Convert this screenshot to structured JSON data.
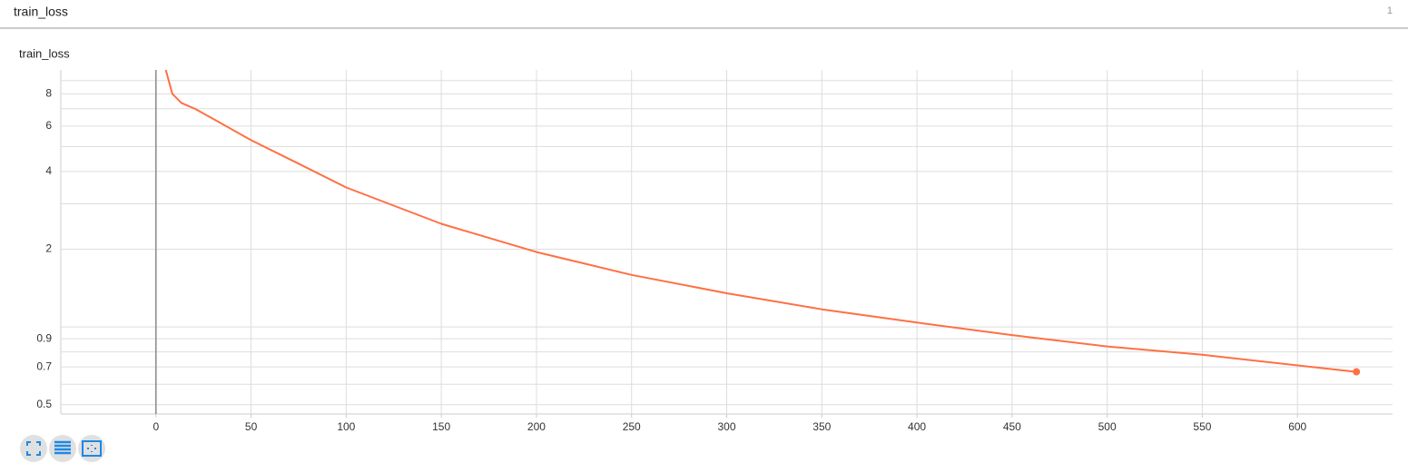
{
  "header": {
    "title": "train_loss",
    "count": "1"
  },
  "chart_data": {
    "type": "line",
    "title": "train_loss",
    "x": [
      5,
      8.6,
      13.4,
      20.5,
      30,
      50,
      75,
      100,
      150,
      200,
      250,
      300,
      350,
      400,
      450,
      500,
      550,
      631
    ],
    "series": [
      {
        "name": "train_loss",
        "color": "#ff7043",
        "values": [
          10,
          8,
          7.37,
          7.0,
          6.4,
          5.29,
          4.29,
          3.47,
          2.51,
          1.95,
          1.59,
          1.35,
          1.17,
          1.04,
          0.93,
          0.84,
          0.78,
          0.67
        ]
      }
    ],
    "xlim": [
      -50,
      650
    ],
    "xticks": [
      0,
      50,
      100,
      150,
      200,
      250,
      300,
      350,
      400,
      450,
      500,
      550,
      600
    ],
    "ylim": [
      0.46,
      9.9
    ],
    "yticks": [
      0.5,
      0.7,
      0.9,
      2,
      4,
      6,
      8
    ],
    "yminor": [
      0.6,
      0.8,
      1,
      3,
      5,
      7,
      9
    ],
    "log_y": true,
    "grid": true
  }
}
